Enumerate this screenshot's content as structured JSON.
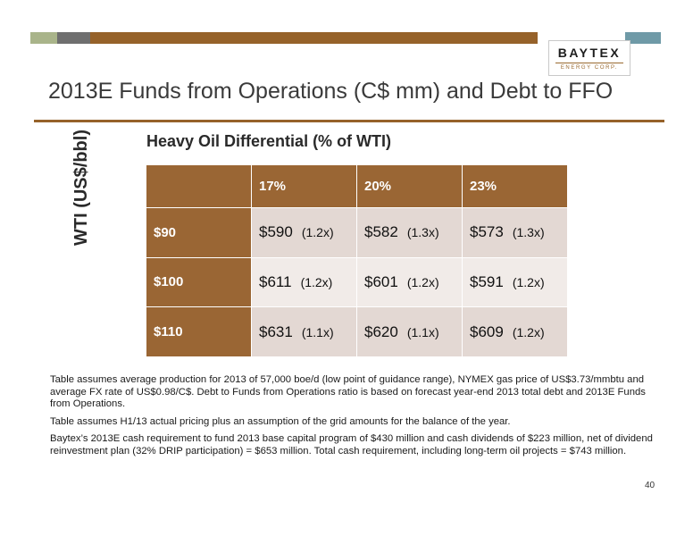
{
  "logo": {
    "name": "BAYTEX",
    "tagline": "ENERGY CORP."
  },
  "title": "2013E Funds from Operations (C$ mm) and Debt to FFO",
  "table_heading": "Heavy Oil Differential (% of WTI)",
  "y_axis_label": "WTI (US$/bbl)",
  "columns": [
    "17%",
    "20%",
    "23%"
  ],
  "rows": [
    {
      "label": "$90",
      "cells": [
        {
          "value": "$590",
          "ratio": "(1.2x)"
        },
        {
          "value": "$582",
          "ratio": "(1.3x)"
        },
        {
          "value": "$573",
          "ratio": "(1.3x)"
        }
      ]
    },
    {
      "label": "$100",
      "cells": [
        {
          "value": "$611",
          "ratio": "(1.2x)"
        },
        {
          "value": "$601",
          "ratio": "(1.2x)"
        },
        {
          "value": "$591",
          "ratio": "(1.2x)"
        }
      ]
    },
    {
      "label": "$110",
      "cells": [
        {
          "value": "$631",
          "ratio": "(1.1x)"
        },
        {
          "value": "$620",
          "ratio": "(1.1x)"
        },
        {
          "value": "$609",
          "ratio": "(1.2x)"
        }
      ]
    }
  ],
  "notes": [
    "Table assumes average production for 2013 of 57,000 boe/d (low point of guidance range), NYMEX gas price of US$3.73/mmbtu and average FX rate of US$0.98/C$. Debt to Funds from Operations ratio is based on forecast year-end 2013 total debt and 2013E Funds from Operations.",
    "Table assumes H1/13 actual pricing plus an assumption of the grid amounts for the balance of the year.",
    "Baytex’s 2013E cash requirement to fund 2013 base capital program of $430 million and cash dividends of $223 million, net of dividend reinvestment plan (32% DRIP participation) = $653 million. Total cash requirement, including long-term oil projects = $743 million."
  ],
  "page_number": "40",
  "colors": {
    "brown": "#9a6634",
    "row_dark": "#e3d8d3",
    "row_light": "#f1ebe8"
  }
}
